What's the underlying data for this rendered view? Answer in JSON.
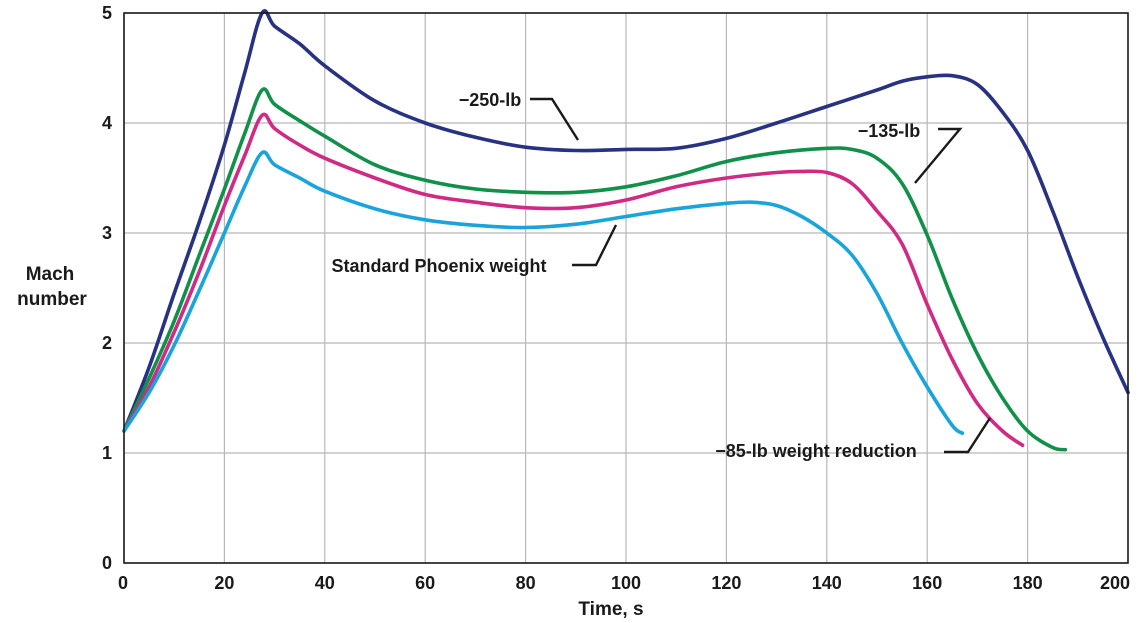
{
  "chart_data": {
    "type": "line",
    "title": "",
    "xlabel": "Time, s",
    "ylabel": [
      "Mach",
      "number"
    ],
    "xlim": [
      0,
      200
    ],
    "ylim": [
      0,
      5
    ],
    "xticks": [
      0,
      20,
      40,
      60,
      80,
      100,
      120,
      140,
      160,
      180,
      200
    ],
    "yticks": [
      0,
      1,
      2,
      3,
      4,
      5
    ],
    "grid": true,
    "legend": "none",
    "series": [
      {
        "label": "−250-lb",
        "color": "#283282",
        "x": [
          0,
          5,
          10,
          15,
          20,
          24,
          27.5,
          30,
          35,
          40,
          50,
          60,
          70,
          80,
          90,
          100,
          110,
          120,
          130,
          140,
          150,
          155,
          160,
          165,
          170,
          175,
          180,
          185,
          190,
          195,
          200
        ],
        "y": [
          1.2,
          1.78,
          2.45,
          3.1,
          3.8,
          4.45,
          5.0,
          4.88,
          4.72,
          4.52,
          4.2,
          4.0,
          3.87,
          3.78,
          3.75,
          3.76,
          3.77,
          3.86,
          4.0,
          4.15,
          4.3,
          4.38,
          4.42,
          4.43,
          4.35,
          4.1,
          3.75,
          3.2,
          2.6,
          2.05,
          1.55
        ]
      },
      {
        "label": "−135-lb",
        "color": "#109048",
        "x": [
          0,
          5,
          10,
          15,
          20,
          24,
          27.5,
          30,
          35,
          40,
          50,
          60,
          70,
          80,
          90,
          100,
          110,
          120,
          130,
          140,
          145,
          150,
          155,
          160,
          165,
          170,
          175,
          180,
          185,
          187.5
        ],
        "y": [
          1.2,
          1.68,
          2.2,
          2.8,
          3.4,
          3.9,
          4.3,
          4.17,
          4.02,
          3.88,
          3.62,
          3.48,
          3.4,
          3.37,
          3.37,
          3.42,
          3.52,
          3.65,
          3.73,
          3.77,
          3.76,
          3.68,
          3.45,
          2.98,
          2.4,
          1.9,
          1.5,
          1.2,
          1.05,
          1.03
        ]
      },
      {
        "label": "−85-lb weight reduction",
        "color": "#d02a84",
        "x": [
          0,
          5,
          10,
          15,
          20,
          24,
          27.5,
          30,
          35,
          40,
          50,
          60,
          70,
          80,
          90,
          100,
          110,
          120,
          130,
          135,
          140,
          145,
          150,
          155,
          160,
          165,
          170,
          175,
          179
        ],
        "y": [
          1.2,
          1.6,
          2.1,
          2.65,
          3.25,
          3.7,
          4.07,
          3.95,
          3.8,
          3.68,
          3.5,
          3.35,
          3.28,
          3.23,
          3.23,
          3.3,
          3.42,
          3.5,
          3.55,
          3.56,
          3.55,
          3.45,
          3.2,
          2.9,
          2.35,
          1.85,
          1.45,
          1.2,
          1.07
        ]
      },
      {
        "label": "Standard Phoenix weight",
        "color": "#1aa4dc",
        "x": [
          0,
          5,
          10,
          15,
          20,
          24,
          27.5,
          30,
          35,
          40,
          50,
          60,
          70,
          80,
          90,
          100,
          110,
          120,
          125,
          130,
          135,
          140,
          145,
          150,
          155,
          160,
          165,
          167
        ],
        "y": [
          1.2,
          1.55,
          1.98,
          2.48,
          3.0,
          3.42,
          3.73,
          3.62,
          3.5,
          3.38,
          3.22,
          3.12,
          3.07,
          3.05,
          3.08,
          3.15,
          3.22,
          3.27,
          3.28,
          3.25,
          3.15,
          3.0,
          2.8,
          2.45,
          2.0,
          1.6,
          1.25,
          1.18
        ]
      }
    ],
    "annotations": [
      {
        "text": "−250-lb",
        "series": "−250-lb"
      },
      {
        "text": "−135-lb",
        "series": "−135-lb"
      },
      {
        "text": "Standard Phoenix weight",
        "series": "Standard Phoenix weight"
      },
      {
        "text": "−85-lb weight reduction",
        "series": "−85-lb weight reduction"
      }
    ]
  }
}
